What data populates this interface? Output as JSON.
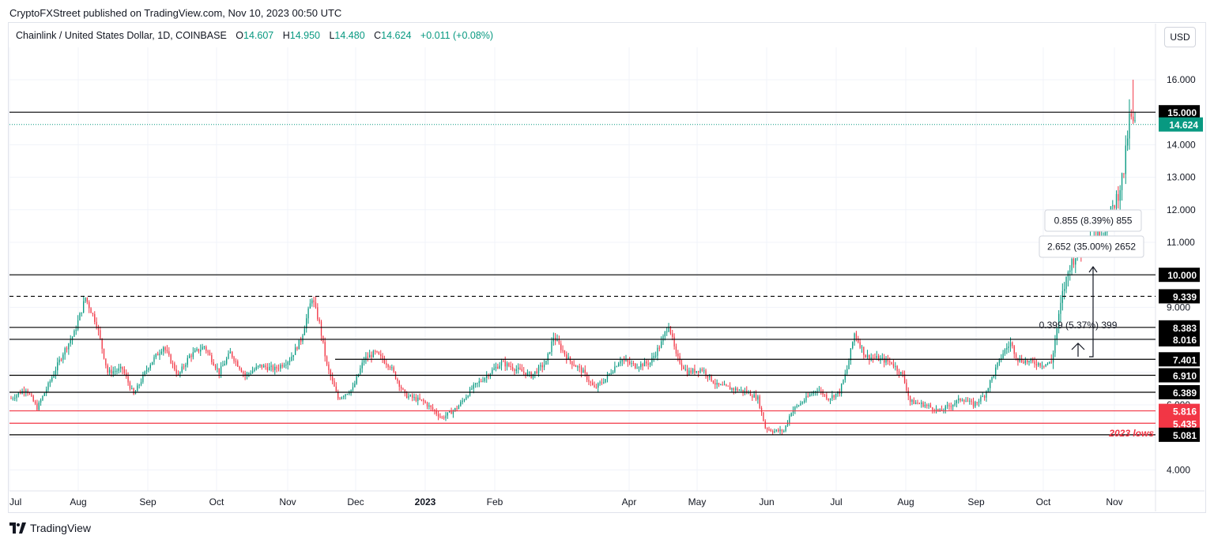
{
  "publisher_line": "CryptoFXStreet published on TradingView.com, Nov 10, 2023 00:50 UTC",
  "legend": {
    "symbol": "Chainlink / United States Dollar, 1D, COINBASE",
    "o_label": "O",
    "o_value": "14.607",
    "h_label": "H",
    "h_value": "14.950",
    "l_label": "L",
    "l_value": "14.480",
    "c_label": "C",
    "c_value": "14.624",
    "change": "+0.011 (+0.08%)"
  },
  "currency_button": "USD",
  "brand": "TradingView",
  "chart_data": {
    "type": "candlestick",
    "symbol": "LINK/USD",
    "timeframe": "1D",
    "exchange": "COINBASE",
    "y_axis": {
      "range": [
        3.6,
        17.0
      ],
      "ticks": [
        "4.000",
        "6.000",
        "9.000",
        "10.000",
        "11.000",
        "12.000",
        "13.000",
        "14.000",
        "16.000"
      ]
    },
    "x_axis": {
      "labels": [
        "Jul",
        "Aug",
        "Sep",
        "Oct",
        "Nov",
        "Dec",
        "2023",
        "Feb",
        "Apr",
        "May",
        "Jun",
        "Jul",
        "Aug",
        "Sep",
        "Oct",
        "Nov"
      ]
    },
    "last_price": {
      "value": 14.624,
      "label": "14.624",
      "color": "#089981"
    },
    "levels": [
      {
        "value": 15.0,
        "label": "15.000",
        "color": "#000000",
        "style": "solid"
      },
      {
        "value": 10.0,
        "label": "10.000",
        "color": "#000000",
        "style": "solid"
      },
      {
        "value": 9.339,
        "label": "9.339",
        "color": "#000000",
        "style": "dashed"
      },
      {
        "value": 8.383,
        "label": "8.383",
        "color": "#000000",
        "style": "solid"
      },
      {
        "value": 8.016,
        "label": "8.016",
        "color": "#000000",
        "style": "solid"
      },
      {
        "value": 7.401,
        "label": "7.401",
        "color": "#000000",
        "style": "solid"
      },
      {
        "value": 6.91,
        "label": "6.910",
        "color": "#000000",
        "style": "solid"
      },
      {
        "value": 6.389,
        "label": "6.389",
        "color": "#000000",
        "style": "solid"
      },
      {
        "value": 5.816,
        "label": "5.816",
        "color": "#f23645",
        "style": "solid"
      },
      {
        "value": 5.435,
        "label": "5.435",
        "color": "#f23645",
        "style": "solid"
      },
      {
        "value": 5.081,
        "label": "5.081",
        "color": "#000000",
        "style": "solid"
      }
    ],
    "annotations": [
      {
        "text": "0.855 (8.39%) 855",
        "type": "measure"
      },
      {
        "text": "2.652 (35.00%) 2652",
        "type": "measure"
      },
      {
        "text": "0.399 (5.37%) 399",
        "type": "measure"
      },
      {
        "text": "2023 lows",
        "color": "#f23645"
      }
    ],
    "anchors": [
      [
        0,
        6.2
      ],
      [
        8,
        6.5
      ],
      [
        14,
        5.9
      ],
      [
        20,
        6.6
      ],
      [
        28,
        7.6
      ],
      [
        34,
        8.2
      ],
      [
        40,
        9.3
      ],
      [
        46,
        8.5
      ],
      [
        52,
        7.0
      ],
      [
        60,
        7.1
      ],
      [
        66,
        6.3
      ],
      [
        74,
        7.2
      ],
      [
        82,
        7.8
      ],
      [
        90,
        6.9
      ],
      [
        96,
        7.5
      ],
      [
        104,
        7.8
      ],
      [
        112,
        7.0
      ],
      [
        118,
        7.6
      ],
      [
        126,
        6.9
      ],
      [
        134,
        7.2
      ],
      [
        142,
        7.1
      ],
      [
        150,
        7.4
      ],
      [
        156,
        8.0
      ],
      [
        162,
        9.3
      ],
      [
        166,
        8.5
      ],
      [
        170,
        7.2
      ],
      [
        176,
        6.2
      ],
      [
        184,
        6.5
      ],
      [
        190,
        7.4
      ],
      [
        196,
        7.6
      ],
      [
        204,
        7.2
      ],
      [
        212,
        6.3
      ],
      [
        222,
        6.1
      ],
      [
        232,
        5.6
      ],
      [
        240,
        5.9
      ],
      [
        248,
        6.5
      ],
      [
        256,
        6.9
      ],
      [
        264,
        7.3
      ],
      [
        272,
        7.1
      ],
      [
        280,
        6.9
      ],
      [
        288,
        7.3
      ],
      [
        292,
        8.1
      ],
      [
        300,
        7.4
      ],
      [
        308,
        7.0
      ],
      [
        314,
        6.5
      ],
      [
        320,
        6.8
      ],
      [
        328,
        7.4
      ],
      [
        336,
        7.2
      ],
      [
        344,
        7.3
      ],
      [
        350,
        7.9
      ],
      [
        354,
        8.5
      ],
      [
        358,
        7.5
      ],
      [
        364,
        7.0
      ],
      [
        372,
        7.1
      ],
      [
        380,
        6.6
      ],
      [
        388,
        6.5
      ],
      [
        396,
        6.4
      ],
      [
        402,
        6.2
      ],
      [
        406,
        5.3
      ],
      [
        410,
        5.2
      ],
      [
        416,
        5.2
      ],
      [
        420,
        5.8
      ],
      [
        426,
        6.1
      ],
      [
        434,
        6.5
      ],
      [
        440,
        6.2
      ],
      [
        446,
        6.4
      ],
      [
        450,
        7.1
      ],
      [
        454,
        8.2
      ],
      [
        460,
        7.5
      ],
      [
        468,
        7.4
      ],
      [
        474,
        7.3
      ],
      [
        480,
        6.9
      ],
      [
        484,
        6.1
      ],
      [
        492,
        6.0
      ],
      [
        500,
        5.8
      ],
      [
        506,
        6.0
      ],
      [
        512,
        6.2
      ],
      [
        518,
        6.0
      ],
      [
        524,
        6.3
      ],
      [
        530,
        7.1
      ],
      [
        534,
        7.6
      ],
      [
        538,
        7.9
      ],
      [
        542,
        7.4
      ],
      [
        550,
        7.3
      ],
      [
        556,
        7.25
      ],
      [
        560,
        7.3
      ],
      [
        562,
        8.0
      ],
      [
        566,
        9.4
      ],
      [
        570,
        10.3
      ],
      [
        574,
        10.7
      ],
      [
        578,
        11.0
      ],
      [
        584,
        11.2
      ],
      [
        588,
        11.3
      ],
      [
        592,
        11.9
      ],
      [
        596,
        12.5
      ],
      [
        599,
        13.2
      ],
      [
        602,
        14.8
      ],
      [
        605,
        14.61
      ]
    ],
    "bars_total": 606
  }
}
